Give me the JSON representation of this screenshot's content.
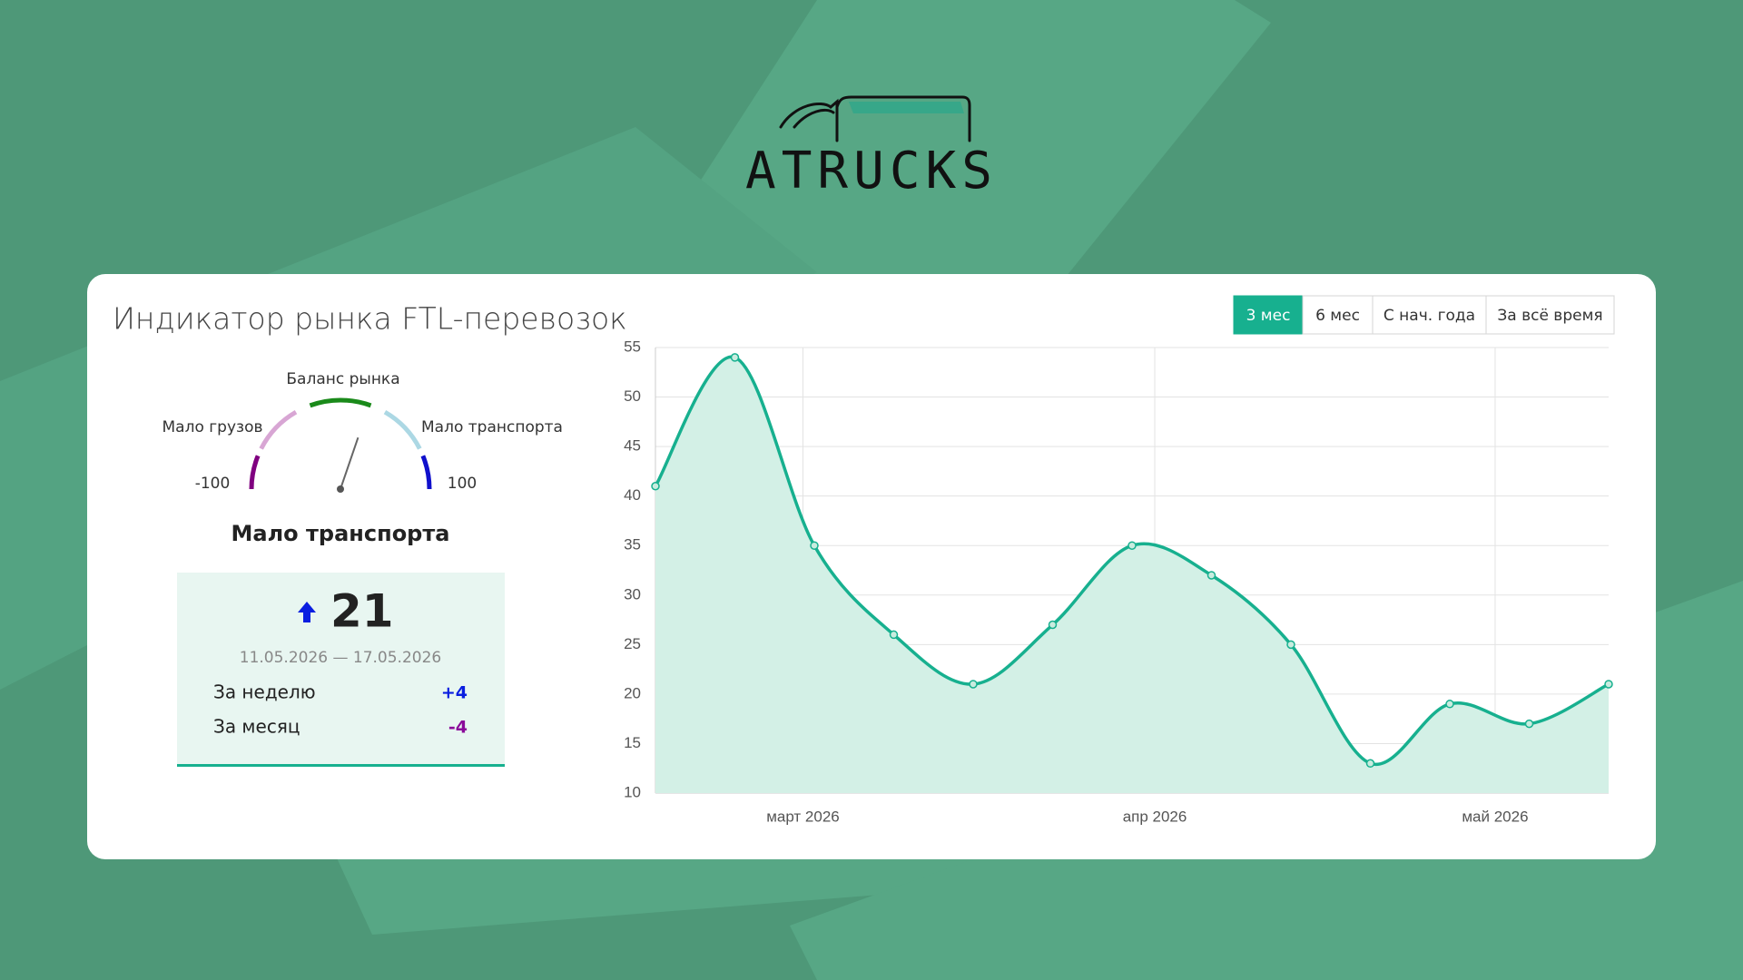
{
  "logo": {
    "text": "ATrucks"
  },
  "title": "Индикатор рынка FTL-перевозок",
  "periods": [
    "3 мес",
    "6 мес",
    "С нач. года",
    "За всё время"
  ],
  "gauge": {
    "title": "Баланс рынка",
    "left_label": "Мало грузов",
    "right_label": "Мало транспорта",
    "min": -100,
    "max": 100,
    "status": "Мало транспорта"
  },
  "indicator": {
    "value": 21,
    "dates": "11.05.2026 — 17.05.2026",
    "rows": [
      {
        "label": "За неделю",
        "change": "+4"
      },
      {
        "label": "За месяц",
        "change": "-4"
      }
    ]
  },
  "chart_data": {
    "type": "line",
    "categories": [
      null,
      null,
      null,
      null,
      null,
      null,
      null,
      null,
      null,
      null,
      null,
      null,
      null
    ],
    "values": [
      41,
      54,
      35,
      26,
      21,
      27,
      35,
      32,
      25,
      13,
      19,
      17,
      21
    ],
    "color": "#17b08f",
    "area_color": "#d3f0e6",
    "xticks": [
      {
        "value": 1.857,
        "label": "март 2026"
      },
      {
        "value": 6.286,
        "label": "апр 2026"
      },
      {
        "value": 10.571,
        "label": "май 2026"
      }
    ],
    "ylim": [
      10,
      55
    ],
    "yticks": [
      10,
      15,
      20,
      25,
      30,
      35,
      40,
      45,
      50,
      55
    ],
    "grid": true
  }
}
